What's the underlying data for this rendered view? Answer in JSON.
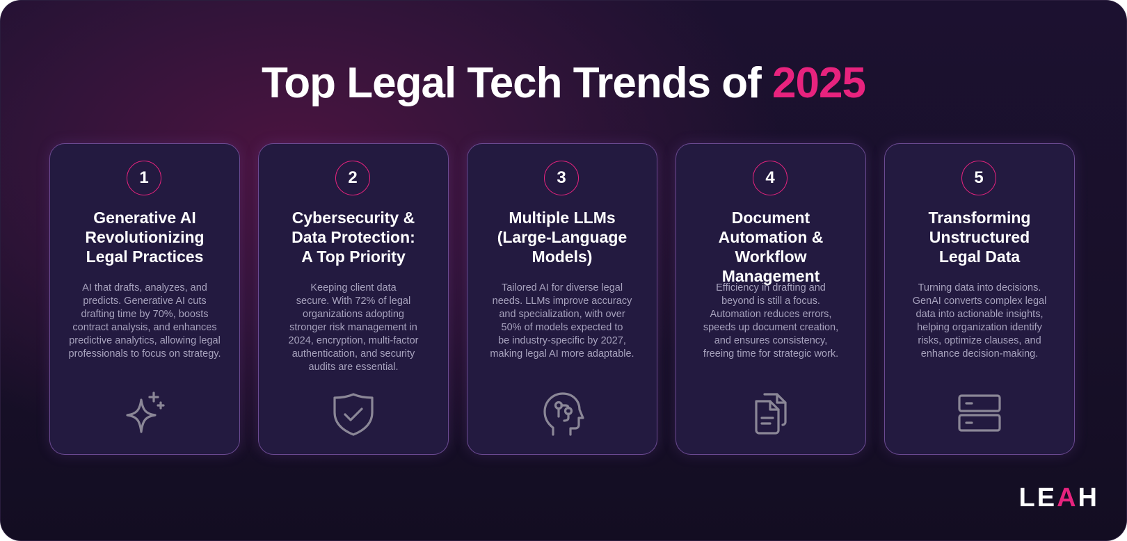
{
  "header": {
    "title_main": "Top Legal Tech Trends of",
    "title_year": "2025"
  },
  "colors": {
    "accent": "#e8237e",
    "card_border": "#6c4b93",
    "card_bg": "#231a40",
    "body_text": "#a7a2bd"
  },
  "cards": [
    {
      "number": "1",
      "title": "Generative AI\nRevolutionizing\nLegal Practices",
      "body": "AI that drafts, analyzes, and\npredicts.  Generative AI cuts\ndrafting time by 70%, boosts\ncontract analysis, and enhances\npredictive analytics, allowing legal\nprofessionals to focus on strategy.",
      "icon": "sparkle-icon"
    },
    {
      "number": "2",
      "title": "Cybersecurity &\nData  Protection:\nA Top Priority",
      "body": "Keeping client data\nsecure.  With 72% of legal\norganizations adopting\nstronger risk management in\n2024, encryption, multi-factor\nauthentication, and security\naudits are essential.",
      "icon": "shield-check-icon"
    },
    {
      "number": "3",
      "title": "Multiple LLMs\n(Large-Language\nModels)",
      "body": "Tailored AI for diverse legal\nneeds.  LLMs improve accuracy\nand specialization, with over\n50% of models expected to\nbe industry-specific by 2027,\nmaking legal AI more adaptable.",
      "icon": "ai-head-icon"
    },
    {
      "number": "4",
      "title": "Document\nAutomation & Workflow\nManagement",
      "body": "Efficiency in drafting and\nbeyond is still a focus.\nAutomation reduces errors,\nspeeds up document creation,\nand ensures consistency,\nfreeing time for strategic work.",
      "icon": "documents-icon"
    },
    {
      "number": "5",
      "title": "Transforming\nUnstructured\nLegal Data",
      "body": "Turning data into decisions.\nGenAI converts complex legal\ndata into actionable insights,\nhelping organization identify\nrisks, optimize clauses, and\nenhance decision-making.",
      "icon": "server-icon"
    }
  ],
  "logo": {
    "part1": "LE",
    "part2": "A",
    "part3": "H"
  }
}
